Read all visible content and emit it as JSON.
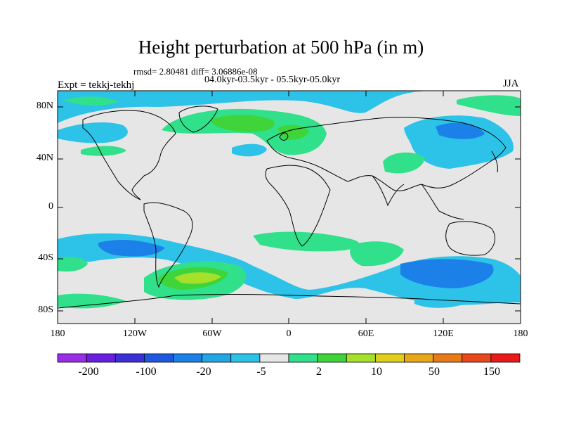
{
  "title": "Height perturbation at 500 hPa (in m)",
  "stats": "rmsd= 2.80481 diff= 3.06886e-08",
  "period": "04.0kyr-03.5kyr - 05.5kyr-05.0kyr",
  "experiment": "Expt = tekkj-tekhj",
  "season": "JJA",
  "axes": {
    "lat_ticks": [
      "80N",
      "40N",
      "0",
      "40S",
      "80S"
    ],
    "lon_ticks": [
      "180",
      "120W",
      "60W",
      "0",
      "60E",
      "120E",
      "180"
    ]
  },
  "colorbar": {
    "tick_labels": [
      "-200",
      "-100",
      "-20",
      "-5",
      "2",
      "10",
      "50",
      "150"
    ],
    "colors": [
      "#9a2ee6",
      "#6a1ee0",
      "#3b2fd8",
      "#1f58e0",
      "#1b80e8",
      "#22a6e6",
      "#2dc3e8",
      "#e6e6e6",
      "#30e08a",
      "#3fd43a",
      "#a6e02a",
      "#dfcf1a",
      "#e8a81a",
      "#e87a18",
      "#e8481a",
      "#e81a1a"
    ]
  },
  "legend_colors": {
    "neutral": "#e6e6e6",
    "light_blue": "#2dc3e8",
    "blue": "#1b80e8",
    "green_light": "#30e08a",
    "green": "#3fd43a",
    "yellow_green": "#a6e02a"
  }
}
